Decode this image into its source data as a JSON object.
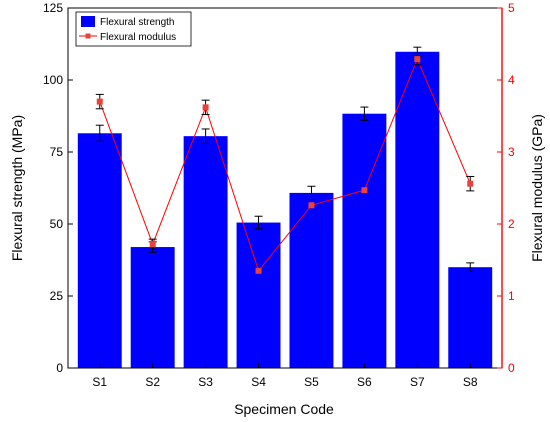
{
  "chart_data": {
    "type": "bar",
    "categories": [
      "S1",
      "S2",
      "S3",
      "S4",
      "S5",
      "S6",
      "S7",
      "S8"
    ],
    "xlabel": "Specimen Code",
    "series": [
      {
        "name": "Flexural strength",
        "type": "bar",
        "axis": "left",
        "values": [
          81.5,
          42,
          80.5,
          50.5,
          60.8,
          88.3,
          109.8,
          35
        ],
        "errors": [
          2.8,
          1.8,
          2.5,
          2.2,
          2.3,
          2.3,
          1.6,
          1.5
        ],
        "color": "#0000ff"
      },
      {
        "name": "Flexural modulus",
        "type": "line",
        "axis": "right",
        "values": [
          3.7,
          1.72,
          3.62,
          1.35,
          2.26,
          2.47,
          4.29,
          2.56
        ],
        "errors": [
          0.1,
          0.07,
          0.1,
          0.0,
          0.0,
          0.0,
          0.08,
          0.1
        ],
        "color": "#ff0000",
        "marker_color": "#e8423a"
      }
    ],
    "left_axis": {
      "label": "Flexural strength (MPa)",
      "ylim": [
        0,
        125
      ],
      "ticks": [
        0,
        25,
        50,
        75,
        100,
        125
      ],
      "color": "#000000"
    },
    "right_axis": {
      "label": "Flexural modulus (GPa)",
      "ylim": [
        0,
        5
      ],
      "ticks": [
        0,
        1,
        2,
        3,
        4,
        5
      ],
      "color": "#ff0000"
    },
    "legend": {
      "position": "top-left",
      "entries": [
        "Flexural strength",
        "Flexural modulus"
      ]
    },
    "grid": false
  }
}
